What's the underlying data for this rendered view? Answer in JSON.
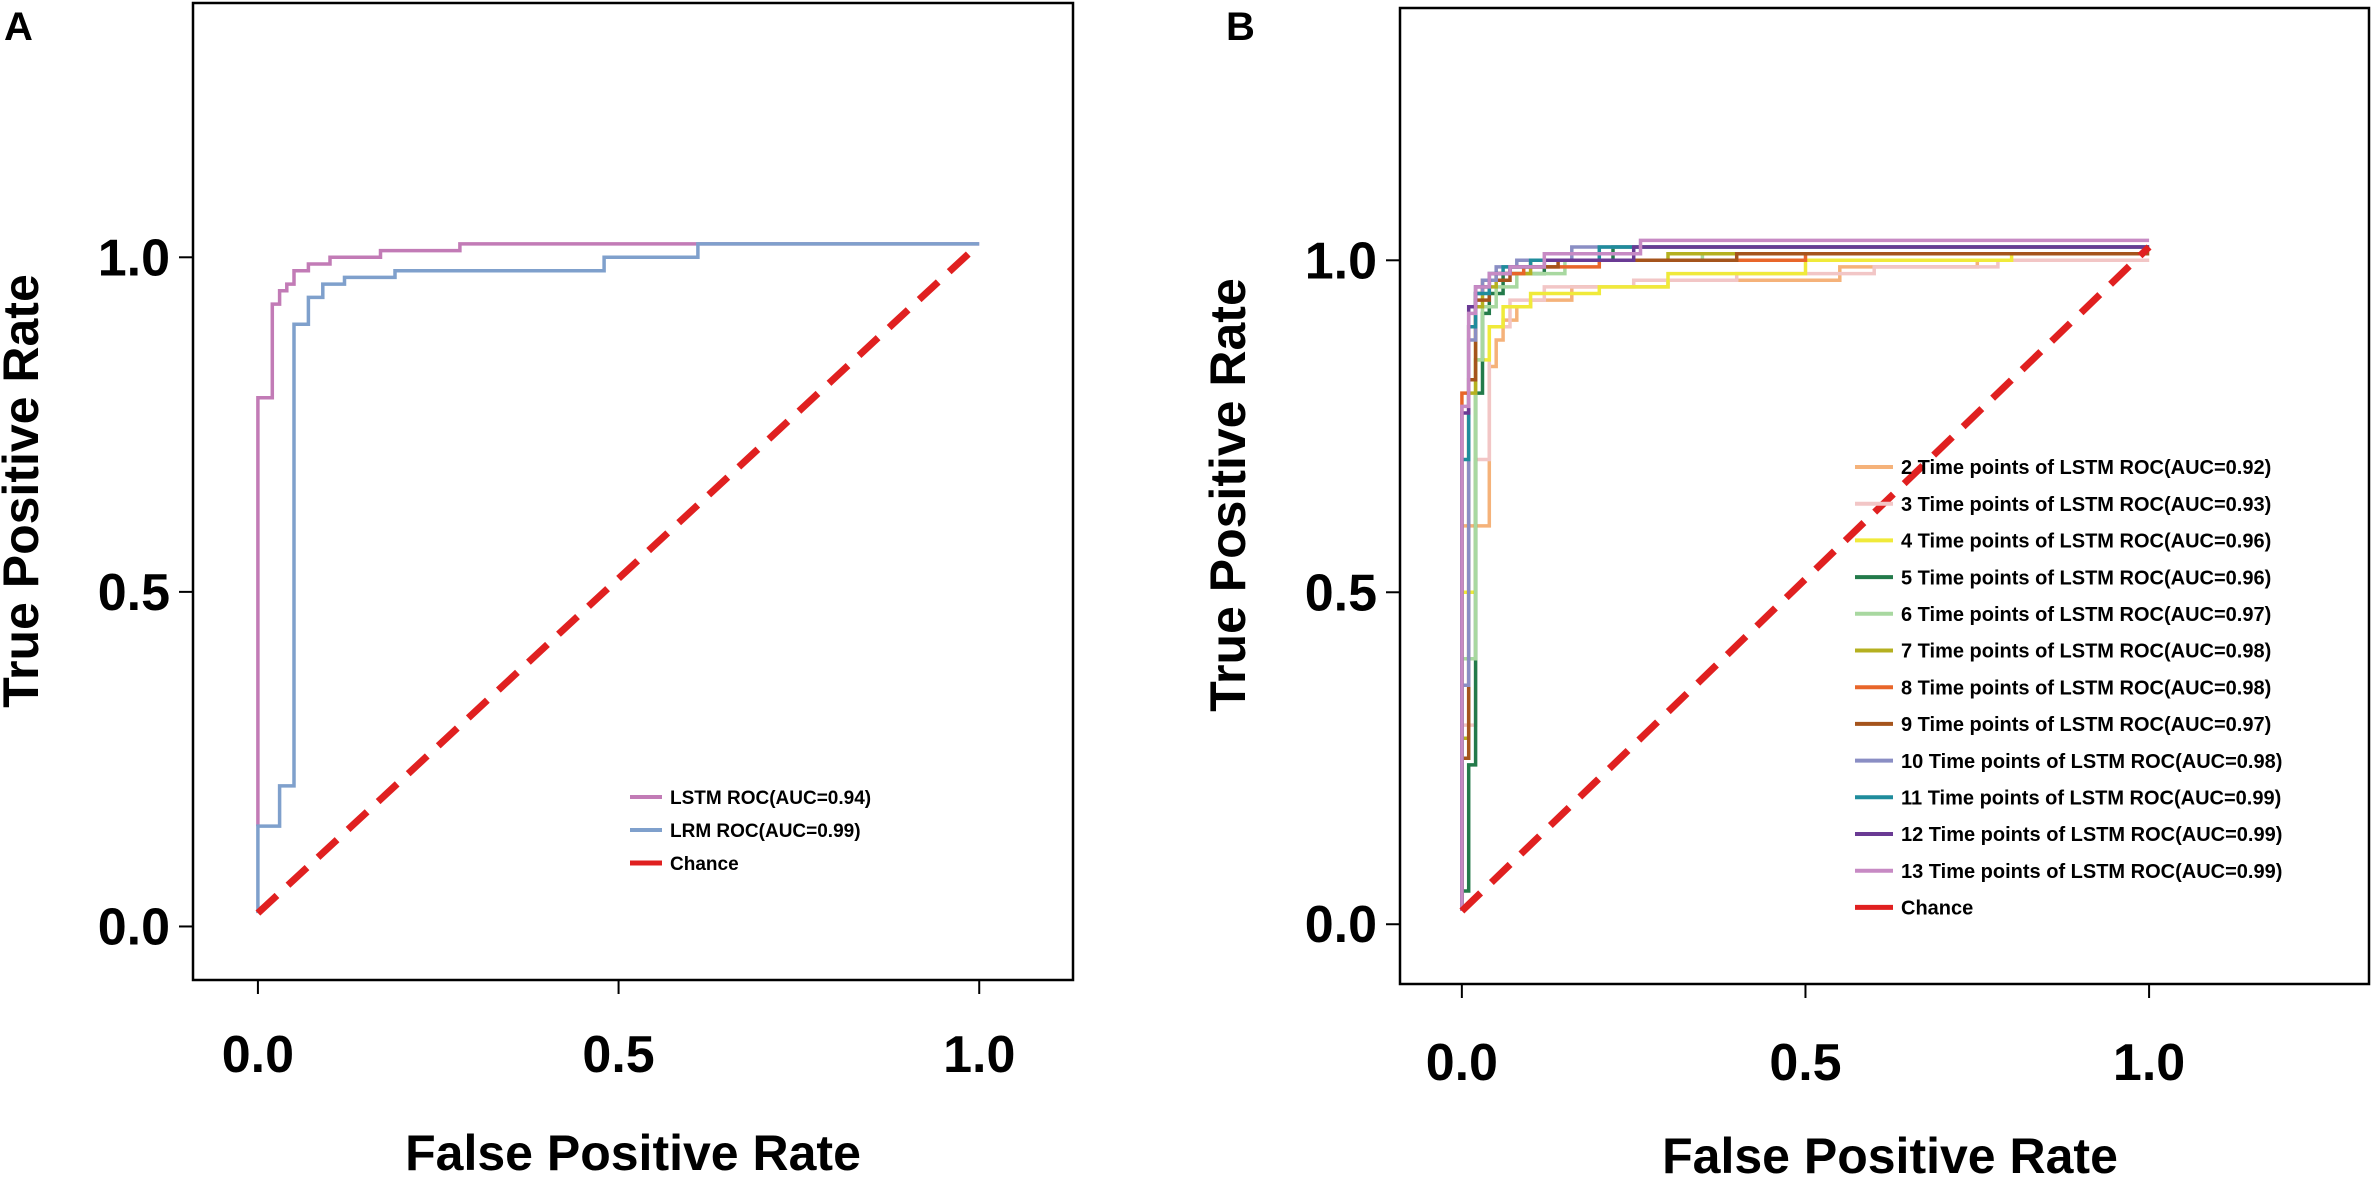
{
  "chart_data": [
    {
      "panel": "A",
      "type": "line",
      "xlabel": "False Positive Rate",
      "ylabel": "True Positive Rate",
      "xlim": [
        -0.09,
        1.13
      ],
      "ylim": [
        -0.08,
        1.38
      ],
      "xticks": [
        0.0,
        0.5,
        1.0
      ],
      "yticks": [
        0.0,
        0.5,
        1.0
      ],
      "xtick_labels": [
        "0.0",
        "0.5",
        "1.0"
      ],
      "ytick_labels": [
        "0.0",
        "0.5",
        "1.0"
      ],
      "legend_position": "bottom-right",
      "series": [
        {
          "name": "LSTM ROC(AUC=0.94)",
          "color": "#c27bb6",
          "x": [
            0.0,
            0.0,
            0.02,
            0.02,
            0.03,
            0.03,
            0.04,
            0.04,
            0.05,
            0.05,
            0.07,
            0.07,
            0.1,
            0.1,
            0.17,
            0.17,
            0.28,
            0.28,
            0.65,
            1.0
          ],
          "y": [
            0.15,
            0.79,
            0.79,
            0.93,
            0.93,
            0.95,
            0.95,
            0.96,
            0.96,
            0.98,
            0.98,
            0.99,
            0.99,
            1.0,
            1.0,
            1.01,
            1.01,
            1.02,
            1.02,
            1.02
          ]
        },
        {
          "name": "LRM ROC(AUC=0.99)",
          "color": "#7fa0cc",
          "x": [
            0.0,
            0.0,
            0.03,
            0.03,
            0.05,
            0.05,
            0.07,
            0.07,
            0.09,
            0.09,
            0.12,
            0.12,
            0.19,
            0.19,
            0.48,
            0.48,
            0.61,
            0.61,
            0.64,
            0.64,
            1.0
          ],
          "y": [
            0.02,
            0.15,
            0.15,
            0.21,
            0.21,
            0.9,
            0.9,
            0.94,
            0.94,
            0.96,
            0.96,
            0.97,
            0.97,
            0.98,
            0.98,
            1.0,
            1.0,
            1.02,
            1.02,
            1.02,
            1.02
          ]
        },
        {
          "name": "Chance",
          "color": "#e02020",
          "dashed": true,
          "x": [
            0.0,
            1.0
          ],
          "y": [
            0.02,
            1.02
          ]
        }
      ]
    },
    {
      "panel": "B",
      "type": "line",
      "xlabel": "False Positive Rate",
      "ylabel": "True Positive Rate",
      "xlim": [
        -0.09,
        1.32
      ],
      "ylim": [
        -0.09,
        1.38
      ],
      "xticks": [
        0.0,
        0.5,
        1.0
      ],
      "yticks": [
        0.0,
        0.5,
        1.0
      ],
      "xtick_labels": [
        "0.0",
        "0.5",
        "1.0"
      ],
      "ytick_labels": [
        "0.0",
        "0.5",
        "1.0"
      ],
      "legend_position": "right",
      "series": [
        {
          "name": "2 Time points of LSTM ROC(AUC=0.92)",
          "color": "#f5b27a",
          "x": [
            0.0,
            0.0,
            0.04,
            0.04,
            0.05,
            0.05,
            0.06,
            0.06,
            0.08,
            0.08,
            0.1,
            0.1,
            0.16,
            0.16,
            0.3,
            0.3,
            0.55,
            0.55,
            0.75,
            0.75,
            1.0
          ],
          "y": [
            0.08,
            0.6,
            0.6,
            0.84,
            0.84,
            0.88,
            0.88,
            0.91,
            0.91,
            0.93,
            0.93,
            0.94,
            0.94,
            0.96,
            0.96,
            0.97,
            0.97,
            0.99,
            0.99,
            1.0,
            1.0
          ]
        },
        {
          "name": "3 Time points of LSTM ROC(AUC=0.93)",
          "color": "#f2c6c6",
          "x": [
            0.0,
            0.0,
            0.02,
            0.02,
            0.04,
            0.04,
            0.07,
            0.07,
            0.12,
            0.12,
            0.25,
            0.25,
            0.4,
            0.4,
            0.6,
            0.6,
            0.78,
            0.78,
            1.0
          ],
          "y": [
            0.02,
            0.3,
            0.3,
            0.7,
            0.7,
            0.9,
            0.9,
            0.94,
            0.94,
            0.96,
            0.96,
            0.97,
            0.97,
            0.98,
            0.98,
            0.99,
            0.99,
            1.0,
            1.0
          ]
        },
        {
          "name": "4 Time points of LSTM ROC(AUC=0.96)",
          "color": "#f0ea3a",
          "x": [
            0.0,
            0.0,
            0.02,
            0.02,
            0.04,
            0.04,
            0.06,
            0.06,
            0.1,
            0.1,
            0.2,
            0.2,
            0.3,
            0.3,
            0.5,
            0.5,
            0.8,
            0.8,
            1.0
          ],
          "y": [
            0.02,
            0.5,
            0.5,
            0.85,
            0.85,
            0.9,
            0.9,
            0.93,
            0.93,
            0.95,
            0.95,
            0.96,
            0.96,
            0.98,
            0.98,
            1.0,
            1.0,
            1.01,
            1.01
          ]
        },
        {
          "name": "5 Time points of LSTM ROC(AUC=0.96)",
          "color": "#237a4a",
          "x": [
            0.0,
            0.0,
            0.01,
            0.01,
            0.02,
            0.02,
            0.03,
            0.03,
            0.04,
            0.04,
            0.06,
            0.06,
            0.12,
            0.12,
            0.22,
            0.22,
            1.0
          ],
          "y": [
            0.02,
            0.05,
            0.05,
            0.24,
            0.24,
            0.8,
            0.8,
            0.92,
            0.92,
            0.95,
            0.95,
            0.98,
            0.98,
            1.0,
            1.0,
            1.02,
            1.02
          ]
        },
        {
          "name": "6 Time points of LSTM ROC(AUC=0.97)",
          "color": "#a8d8a0",
          "x": [
            0.0,
            0.0,
            0.02,
            0.02,
            0.03,
            0.03,
            0.05,
            0.05,
            0.08,
            0.08,
            0.15,
            0.15,
            0.35,
            0.35,
            1.0
          ],
          "y": [
            0.02,
            0.4,
            0.4,
            0.85,
            0.85,
            0.93,
            0.93,
            0.96,
            0.96,
            0.98,
            0.98,
            1.0,
            1.0,
            1.01,
            1.01
          ]
        },
        {
          "name": "7 Time points of LSTM ROC(AUC=0.98)",
          "color": "#b5b020",
          "x": [
            0.0,
            0.0,
            0.01,
            0.01,
            0.02,
            0.02,
            0.03,
            0.03,
            0.05,
            0.05,
            0.1,
            0.1,
            0.3,
            0.3,
            1.0
          ],
          "y": [
            0.02,
            0.28,
            0.28,
            0.8,
            0.8,
            0.93,
            0.93,
            0.96,
            0.96,
            0.98,
            0.98,
            1.0,
            1.0,
            1.01,
            1.01
          ]
        },
        {
          "name": "8 Time points of LSTM ROC(AUC=0.98)",
          "color": "#e8662a",
          "x": [
            0.0,
            0.0,
            0.01,
            0.01,
            0.02,
            0.02,
            0.03,
            0.03,
            0.05,
            0.05,
            0.09,
            0.09,
            0.2,
            0.2,
            0.5,
            0.5,
            1.0
          ],
          "y": [
            0.02,
            0.8,
            0.8,
            0.9,
            0.9,
            0.95,
            0.95,
            0.97,
            0.97,
            0.98,
            0.98,
            0.99,
            0.99,
            1.0,
            1.0,
            1.01,
            1.01
          ]
        },
        {
          "name": "9 Time points of LSTM ROC(AUC=0.97)",
          "color": "#a5541c",
          "x": [
            0.0,
            0.0,
            0.01,
            0.01,
            0.02,
            0.02,
            0.04,
            0.04,
            0.07,
            0.07,
            0.14,
            0.14,
            0.4,
            0.4,
            1.0
          ],
          "y": [
            0.02,
            0.25,
            0.25,
            0.82,
            0.82,
            0.94,
            0.94,
            0.97,
            0.97,
            0.99,
            0.99,
            1.0,
            1.0,
            1.01,
            1.01
          ]
        },
        {
          "name": "10 Time points of LSTM ROC(AUC=0.98)",
          "color": "#8a8ec4",
          "x": [
            0.0,
            0.0,
            0.01,
            0.01,
            0.02,
            0.02,
            0.03,
            0.03,
            0.05,
            0.05,
            0.08,
            0.08,
            0.16,
            0.16,
            1.0
          ],
          "y": [
            0.02,
            0.36,
            0.36,
            0.88,
            0.88,
            0.95,
            0.95,
            0.97,
            0.97,
            0.99,
            0.99,
            1.0,
            1.0,
            1.02,
            1.02
          ]
        },
        {
          "name": "11 Time points of LSTM ROC(AUC=0.99)",
          "color": "#1f8c9c",
          "x": [
            0.0,
            0.0,
            0.01,
            0.01,
            0.02,
            0.02,
            0.04,
            0.04,
            0.06,
            0.06,
            0.1,
            0.1,
            0.2,
            0.2,
            1.0
          ],
          "y": [
            0.02,
            0.7,
            0.7,
            0.9,
            0.9,
            0.95,
            0.95,
            0.98,
            0.98,
            0.99,
            0.99,
            1.0,
            1.0,
            1.02,
            1.02
          ]
        },
        {
          "name": "12 Time points of LSTM ROC(AUC=0.99)",
          "color": "#6a3a94",
          "x": [
            0.0,
            0.0,
            0.01,
            0.01,
            0.02,
            0.02,
            0.04,
            0.04,
            0.07,
            0.07,
            0.12,
            0.12,
            0.25,
            0.25,
            1.0
          ],
          "y": [
            0.02,
            0.77,
            0.77,
            0.93,
            0.93,
            0.96,
            0.96,
            0.98,
            0.98,
            0.99,
            0.99,
            1.0,
            1.0,
            1.02,
            1.02
          ]
        },
        {
          "name": "13 Time points of LSTM ROC(AUC=0.99)",
          "color": "#c78ac4",
          "x": [
            0.0,
            0.0,
            0.01,
            0.01,
            0.02,
            0.02,
            0.04,
            0.04,
            0.07,
            0.07,
            0.12,
            0.12,
            0.26,
            0.26,
            1.0
          ],
          "y": [
            0.02,
            0.78,
            0.78,
            0.92,
            0.92,
            0.96,
            0.96,
            0.98,
            0.98,
            0.99,
            0.99,
            1.01,
            1.01,
            1.03,
            1.03
          ]
        },
        {
          "name": "Chance",
          "color": "#e02020",
          "dashed": true,
          "x": [
            0.0,
            1.0
          ],
          "y": [
            0.02,
            1.02
          ]
        }
      ]
    }
  ]
}
